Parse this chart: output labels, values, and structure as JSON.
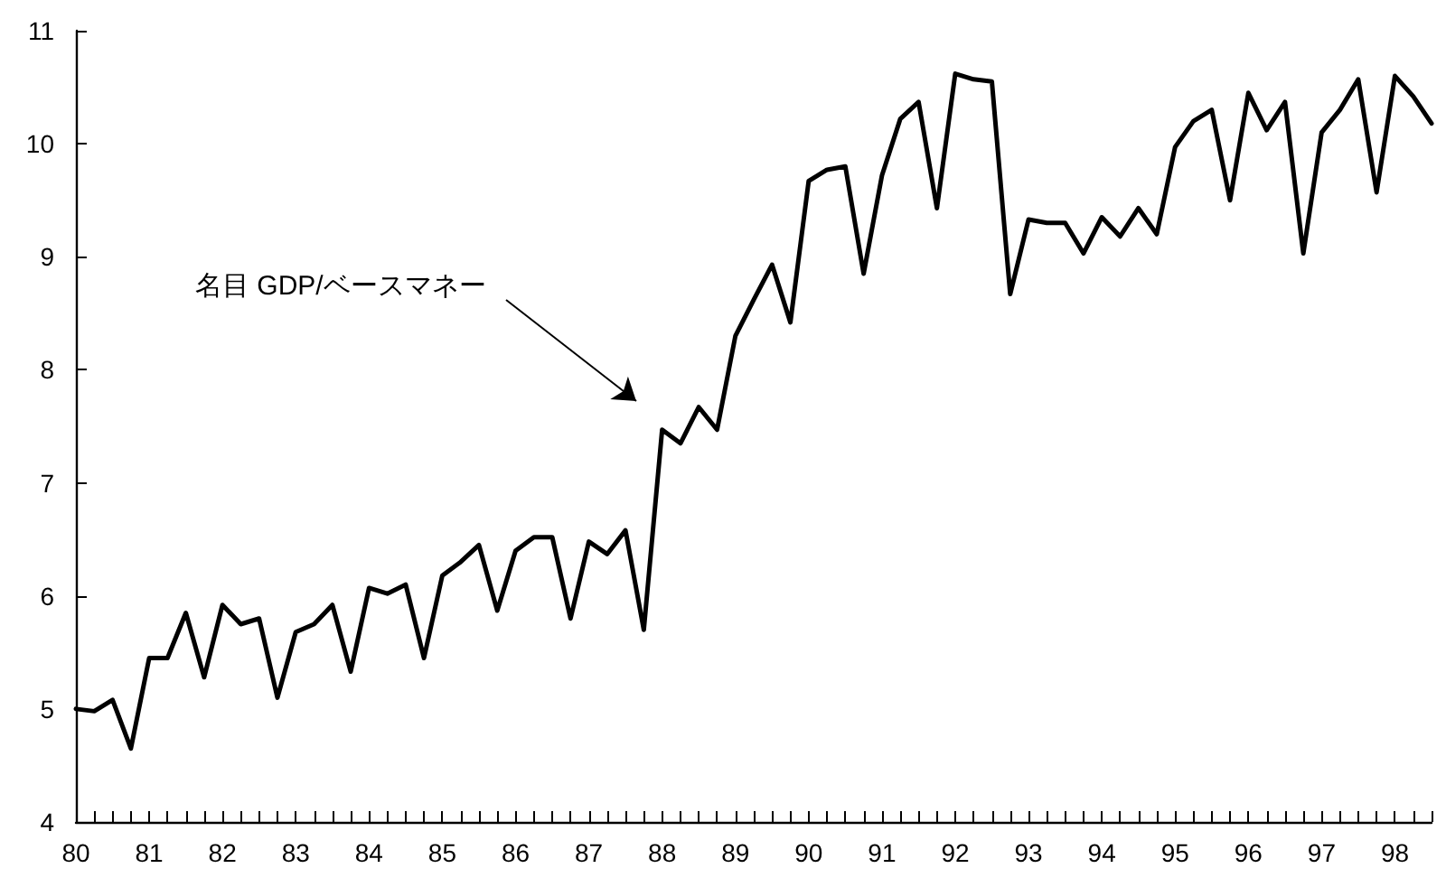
{
  "chart_data": {
    "type": "line",
    "categories": [
      "80",
      null,
      null,
      null,
      "81",
      null,
      null,
      null,
      "82",
      null,
      null,
      null,
      "83",
      null,
      null,
      null,
      "84",
      null,
      null,
      null,
      "85",
      null,
      null,
      null,
      "86",
      null,
      null,
      null,
      "87",
      null,
      null,
      null,
      "88",
      null,
      null,
      null,
      "89",
      null,
      null,
      null,
      "90",
      null,
      null,
      null,
      "91",
      null,
      null,
      null,
      "92",
      null,
      null,
      null,
      "93",
      null,
      null,
      null,
      "94",
      null,
      null,
      null,
      "95",
      null,
      null,
      null,
      "96",
      null,
      null,
      null,
      "97",
      null,
      null,
      null,
      "98",
      null,
      null
    ],
    "series": [
      {
        "color": "#000000",
        "values": [
          5.0,
          4.98,
          5.08,
          4.65,
          5.45,
          5.45,
          5.85,
          5.28,
          5.92,
          5.75,
          5.8,
          5.1,
          5.68,
          5.75,
          5.92,
          5.33,
          6.07,
          6.02,
          6.1,
          5.45,
          6.18,
          6.3,
          6.45,
          5.87,
          6.4,
          6.52,
          6.52,
          5.8,
          6.48,
          6.37,
          6.58,
          5.7,
          7.47,
          7.35,
          7.67,
          7.47,
          8.3,
          8.62,
          8.93,
          8.42,
          9.67,
          9.77,
          9.8,
          8.85,
          9.72,
          10.22,
          10.37,
          9.43,
          10.62,
          10.57,
          10.55,
          8.67,
          9.33,
          9.3,
          9.3,
          9.03,
          9.35,
          9.18,
          9.43,
          9.2,
          9.97,
          10.2,
          10.3,
          9.5,
          10.45,
          10.12,
          10.37,
          9.03,
          10.1,
          10.3,
          10.57,
          9.57,
          10.6,
          10.42,
          10.18
        ]
      }
    ],
    "ylim": [
      4,
      11
    ],
    "yticks": [
      4,
      5,
      6,
      7,
      8,
      9,
      10,
      11
    ],
    "annotations": [
      "名目 GDP/ベースマネー"
    ],
    "grid": false,
    "marker": "none",
    "line_style": "solid"
  }
}
